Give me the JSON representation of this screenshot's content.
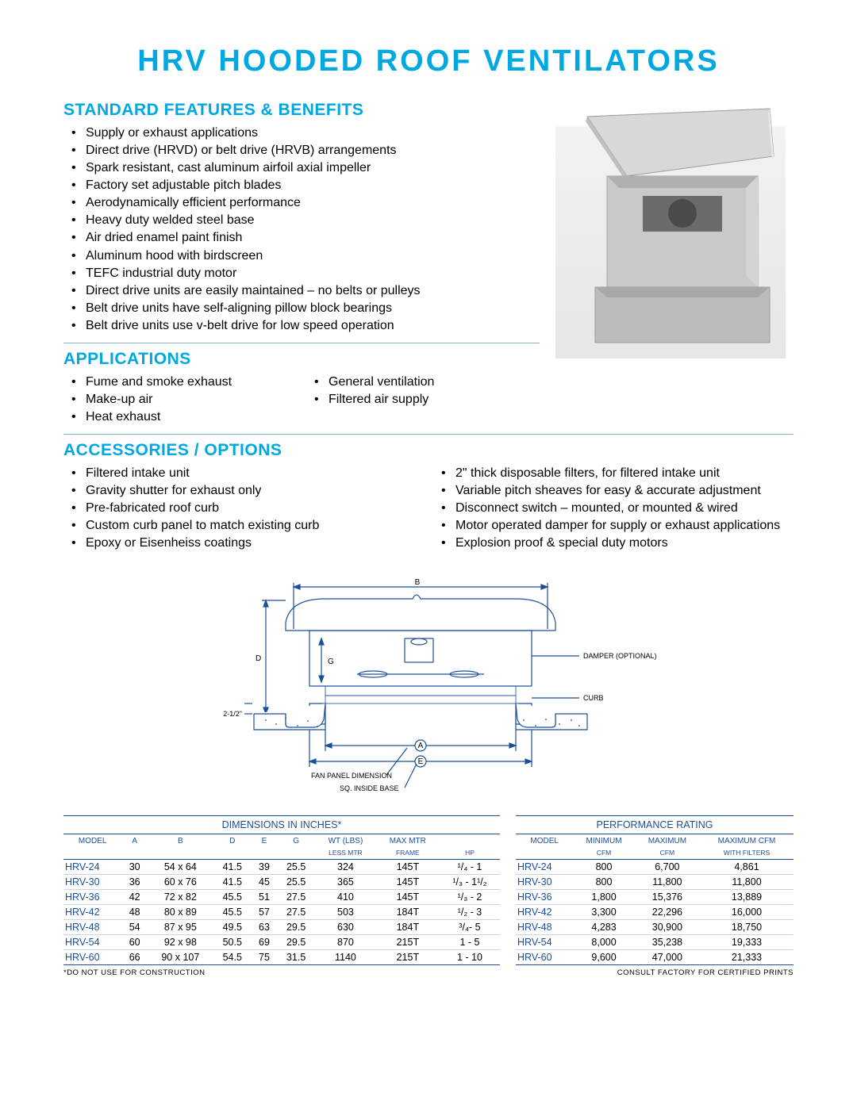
{
  "title": "HRV HOODED ROOF VENTILATORS",
  "colors": {
    "accent": "#00a8e1",
    "table_blue": "#1a4f9c",
    "rule": "#8ab7c7",
    "row_rule": "#c9d6e4"
  },
  "sections": {
    "features": {
      "heading": "STANDARD FEATURES & BENEFITS",
      "items": [
        "Supply or exhaust applications",
        "Direct drive (HRVD) or belt drive (HRVB) arrangements",
        "Spark resistant, cast aluminum airfoil axial impeller",
        "Factory set adjustable pitch blades",
        "Aerodynamically efficient performance",
        "Heavy duty welded steel base",
        "Air dried enamel paint finish",
        "Aluminum hood with birdscreen",
        "TEFC industrial duty motor",
        "Direct drive units are easily maintained – no belts or pulleys",
        "Belt drive units have self-aligning pillow block bearings",
        "Belt drive units use v-belt drive for low speed operation"
      ]
    },
    "applications": {
      "heading": "APPLICATIONS",
      "left": [
        "Fume and smoke exhaust",
        "Make-up air",
        "Heat exhaust"
      ],
      "right": [
        "General ventilation",
        "Filtered air supply"
      ]
    },
    "accessories": {
      "heading": "ACCESSORIES / OPTIONS",
      "left": [
        "Filtered intake unit",
        "Gravity shutter for exhaust only",
        "Pre-fabricated roof curb",
        "Custom curb panel to match existing curb",
        "Epoxy or Eisenheiss coatings"
      ],
      "right": [
        "2\" thick disposable filters, for filtered intake unit",
        "Variable pitch sheaves for easy & accurate adjustment",
        "Disconnect switch – mounted, or mounted & wired",
        "Motor operated damper for supply or exhaust applications",
        "Explosion proof & special duty motors"
      ]
    }
  },
  "diagram": {
    "labels": {
      "B": "B",
      "D": "D",
      "G": "G",
      "A": "A",
      "E": "E",
      "damper": "DAMPER (OPTIONAL)",
      "curb": "CURB",
      "gap": "2-1/2\"",
      "fan_panel": "FAN PANEL DIMENSION",
      "sq_inside": "SQ. INSIDE BASE"
    }
  },
  "tables": {
    "dimensions": {
      "title": "DIMENSIONS IN INCHES*",
      "cols_top": [
        "MODEL",
        "A",
        "B",
        "D",
        "E",
        "G",
        "WT (LBS)",
        "MAX MTR",
        ""
      ],
      "cols_sub": [
        "",
        "",
        "",
        "",
        "",
        "",
        "LESS MTR",
        "FRAME",
        "HP"
      ],
      "rows": [
        [
          "HRV-24",
          "30",
          "54 x 64",
          "41.5",
          "39",
          "25.5",
          "324",
          "145T",
          "¹/₄ - 1"
        ],
        [
          "HRV-30",
          "36",
          "60 x 76",
          "41.5",
          "45",
          "25.5",
          "365",
          "145T",
          "¹/₃ - 1¹/₂"
        ],
        [
          "HRV-36",
          "42",
          "72 x 82",
          "45.5",
          "51",
          "27.5",
          "410",
          "145T",
          "¹/₃ - 2"
        ],
        [
          "HRV-42",
          "48",
          "80 x 89",
          "45.5",
          "57",
          "27.5",
          "503",
          "184T",
          "¹/₂ - 3"
        ],
        [
          "HRV-48",
          "54",
          "87 x 95",
          "49.5",
          "63",
          "29.5",
          "630",
          "184T",
          "³/₄- 5"
        ],
        [
          "HRV-54",
          "60",
          "92 x 98",
          "50.5",
          "69",
          "29.5",
          "870",
          "215T",
          "1 - 5"
        ],
        [
          "HRV-60",
          "66",
          "90 x 107",
          "54.5",
          "75",
          "31.5",
          "1140",
          "215T",
          "1 - 10"
        ]
      ]
    },
    "performance": {
      "title": "PERFORMANCE RATING",
      "cols_top": [
        "MODEL",
        "MINIMUM",
        "MAXIMUM",
        "MAXIMUM CFM"
      ],
      "cols_sub": [
        "",
        "CFM",
        "CFM",
        "WITH FILTERS"
      ],
      "rows": [
        [
          "HRV-24",
          "800",
          "6,700",
          "4,861"
        ],
        [
          "HRV-30",
          "800",
          "11,800",
          "11,800"
        ],
        [
          "HRV-36",
          "1,800",
          "15,376",
          "13,889"
        ],
        [
          "HRV-42",
          "3,300",
          "22,296",
          "16,000"
        ],
        [
          "HRV-48",
          "4,283",
          "30,900",
          "18,750"
        ],
        [
          "HRV-54",
          "8,000",
          "35,238",
          "19,333"
        ],
        [
          "HRV-60",
          "9,600",
          "47,000",
          "21,333"
        ]
      ]
    }
  },
  "footnotes": {
    "left": "*DO NOT USE FOR CONSTRUCTION",
    "right": "CONSULT FACTORY FOR CERTIFIED PRINTS"
  }
}
